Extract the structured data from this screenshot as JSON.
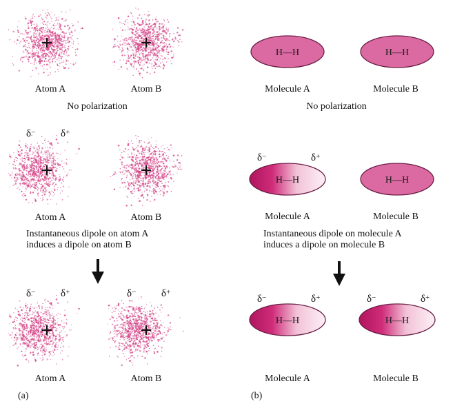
{
  "colors": {
    "cloud": "#d4488a",
    "molecule": "#dc6aa2",
    "molecule_stroke": "#6a1d45",
    "molecule_dark": "#b8135f",
    "molecule_light": "#fbe6ef",
    "arrow": "#111111"
  },
  "panel_a": {
    "tag": "(a)",
    "row1": {
      "atom_a": "Atom A",
      "atom_b": "Atom B",
      "caption": "No polarization"
    },
    "row2": {
      "delta_minus": "δ",
      "delta_minus_sup": "−",
      "delta_plus": "δ",
      "delta_plus_sup": "+",
      "atom_a": "Atom A",
      "atom_b": "Atom B",
      "caption_line1": "Instantaneous dipole on atom A",
      "caption_line2": "induces a dipole on atom B"
    },
    "row3": {
      "delta_minus": "δ",
      "delta_minus_sup": "−",
      "delta_plus": "δ",
      "delta_plus_sup": "+",
      "atom_a": "Atom A",
      "atom_b": "Atom B"
    }
  },
  "panel_b": {
    "tag": "(b)",
    "bond_text": "H—H",
    "row1": {
      "molecule_a": "Molecule A",
      "molecule_b": "Molecule B",
      "caption": "No polarization"
    },
    "row2": {
      "delta_minus": "δ",
      "delta_minus_sup": "−",
      "delta_plus": "δ",
      "delta_plus_sup": "+",
      "molecule_a": "Molecule A",
      "molecule_b": "Molecule B",
      "caption_line1": "Instantaneous dipole on molecule A",
      "caption_line2": "induces a dipole on molecule B"
    },
    "row3": {
      "delta_minus": "δ",
      "delta_minus_sup": "−",
      "delta_plus": "δ",
      "delta_plus_sup": "+",
      "molecule_a": "Molecule A",
      "molecule_b": "Molecule B"
    }
  }
}
